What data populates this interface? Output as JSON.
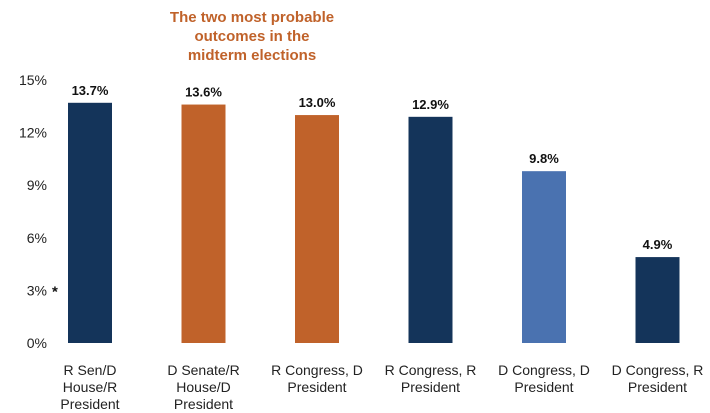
{
  "chart_data": {
    "type": "bar",
    "title": "",
    "xlabel": "",
    "ylabel": "",
    "ylim": [
      0,
      15
    ],
    "yticks": [
      "0%",
      "3%",
      "6%",
      "9%",
      "12%",
      "15%"
    ],
    "ytick_values": [
      0,
      3,
      6,
      9,
      12,
      15
    ],
    "grid": false,
    "categories": [
      [
        "R Sen/D",
        "House/R",
        "President"
      ],
      [
        "D Senate/R",
        "House/D",
        "President"
      ],
      [
        "R Congress, D",
        "President"
      ],
      [
        "R Congress, R",
        "President"
      ],
      [
        "D Congress, D",
        "President"
      ],
      [
        "D Congress, R",
        "President"
      ]
    ],
    "values": [
      13.7,
      13.6,
      13.0,
      12.9,
      9.8,
      4.9
    ],
    "data_labels": [
      "13.7%",
      "13.6%",
      "13.0%",
      "12.9%",
      "9.8%",
      "4.9%"
    ],
    "colors": [
      "#14345a",
      "#c0622a",
      "#c0622a",
      "#14345a",
      "#4a72b0",
      "#14345a"
    ],
    "annotation": [
      "The two most probable",
      "outcomes in the",
      "midterm elections"
    ],
    "annotation_color": "#c0622a",
    "y_marker": "*",
    "y_marker_value": 3
  }
}
